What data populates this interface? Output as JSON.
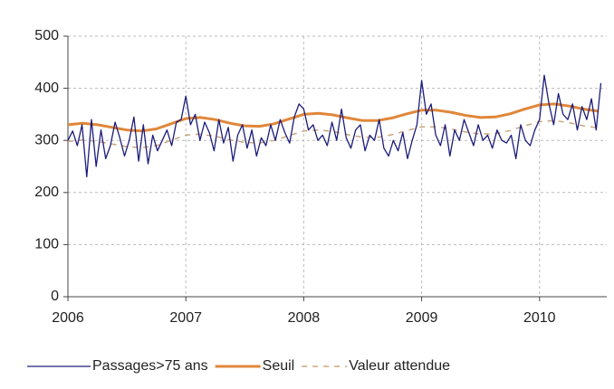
{
  "chart_data": {
    "type": "line",
    "xlim": [
      2006,
      2010.57
    ],
    "xticks": [
      2006,
      2007,
      2008,
      2009,
      2010
    ],
    "ylim": [
      0,
      500
    ],
    "yticks": [
      0,
      100,
      200,
      300,
      400,
      500
    ],
    "grid": true,
    "legend": "bottom",
    "series": [
      {
        "name": "Passages>75 ans",
        "color": "#1c1c7c",
        "x": [
          2006.0,
          2006.04,
          2006.08,
          2006.12,
          2006.16,
          2006.2,
          2006.24,
          2006.28,
          2006.32,
          2006.36,
          2006.4,
          2006.44,
          2006.48,
          2006.52,
          2006.56,
          2006.6,
          2006.64,
          2006.68,
          2006.72,
          2006.76,
          2006.8,
          2006.84,
          2006.88,
          2006.92,
          2006.96,
          2007.0,
          2007.04,
          2007.08,
          2007.12,
          2007.16,
          2007.2,
          2007.24,
          2007.28,
          2007.32,
          2007.36,
          2007.4,
          2007.44,
          2007.48,
          2007.52,
          2007.56,
          2007.6,
          2007.64,
          2007.68,
          2007.72,
          2007.76,
          2007.8,
          2007.84,
          2007.88,
          2007.92,
          2007.96,
          2008.0,
          2008.04,
          2008.08,
          2008.12,
          2008.16,
          2008.2,
          2008.24,
          2008.28,
          2008.32,
          2008.36,
          2008.4,
          2008.44,
          2008.48,
          2008.52,
          2008.56,
          2008.6,
          2008.64,
          2008.68,
          2008.72,
          2008.76,
          2008.8,
          2008.84,
          2008.88,
          2008.92,
          2008.96,
          2009.0,
          2009.04,
          2009.08,
          2009.12,
          2009.16,
          2009.2,
          2009.24,
          2009.28,
          2009.32,
          2009.36,
          2009.4,
          2009.44,
          2009.48,
          2009.52,
          2009.56,
          2009.6,
          2009.64,
          2009.68,
          2009.72,
          2009.76,
          2009.8,
          2009.84,
          2009.88,
          2009.92,
          2009.96,
          2010.0,
          2010.04,
          2010.08,
          2010.12,
          2010.16,
          2010.2,
          2010.24,
          2010.28,
          2010.32,
          2010.36,
          2010.4,
          2010.44,
          2010.48,
          2010.52
        ],
        "values": [
          300,
          318,
          290,
          330,
          230,
          340,
          250,
          320,
          265,
          290,
          335,
          305,
          270,
          300,
          345,
          260,
          330,
          255,
          310,
          280,
          300,
          320,
          290,
          335,
          340,
          385,
          330,
          350,
          300,
          335,
          315,
          280,
          340,
          295,
          325,
          260,
          310,
          330,
          285,
          320,
          270,
          305,
          290,
          330,
          300,
          340,
          315,
          295,
          345,
          370,
          360,
          320,
          330,
          300,
          310,
          290,
          335,
          300,
          360,
          305,
          285,
          320,
          330,
          280,
          310,
          300,
          340,
          285,
          270,
          300,
          280,
          315,
          265,
          300,
          330,
          415,
          350,
          370,
          310,
          290,
          330,
          270,
          320,
          300,
          340,
          315,
          290,
          330,
          300,
          310,
          285,
          320,
          300,
          295,
          310,
          265,
          330,
          300,
          290,
          320,
          340,
          425,
          370,
          330,
          390,
          350,
          340,
          370,
          320,
          365,
          340,
          380,
          320,
          410
        ]
      },
      {
        "name": "Seuil",
        "color": "#e0873a",
        "x": [
          2006.0,
          2006.125,
          2006.25,
          2006.375,
          2006.5,
          2006.625,
          2006.75,
          2006.875,
          2007.0,
          2007.125,
          2007.25,
          2007.375,
          2007.5,
          2007.625,
          2007.75,
          2007.875,
          2008.0,
          2008.125,
          2008.25,
          2008.375,
          2008.5,
          2008.625,
          2008.75,
          2008.875,
          2009.0,
          2009.125,
          2009.25,
          2009.375,
          2009.5,
          2009.625,
          2009.75,
          2009.875,
          2010.0,
          2010.125,
          2010.25,
          2010.375,
          2010.5
        ],
        "values": [
          330,
          333,
          330,
          325,
          320,
          318,
          322,
          332,
          342,
          344,
          340,
          333,
          328,
          327,
          332,
          341,
          350,
          352,
          349,
          343,
          338,
          338,
          343,
          351,
          358,
          358,
          354,
          348,
          344,
          345,
          351,
          360,
          368,
          370,
          366,
          360,
          356
        ]
      },
      {
        "name": "Valeur attendue",
        "color": "#c9a57e",
        "dashed": true,
        "x": [
          2006.0,
          2006.125,
          2006.25,
          2006.375,
          2006.5,
          2006.625,
          2006.75,
          2006.875,
          2007.0,
          2007.125,
          2007.25,
          2007.375,
          2007.5,
          2007.625,
          2007.75,
          2007.875,
          2008.0,
          2008.125,
          2008.25,
          2008.375,
          2008.5,
          2008.625,
          2008.75,
          2008.875,
          2009.0,
          2009.125,
          2009.25,
          2009.375,
          2009.5,
          2009.625,
          2009.75,
          2009.875,
          2010.0,
          2010.125,
          2010.25,
          2010.375,
          2010.5
        ],
        "values": [
          298,
          301,
          298,
          293,
          288,
          286,
          290,
          300,
          310,
          312,
          308,
          301,
          296,
          295,
          300,
          309,
          318,
          320,
          317,
          311,
          306,
          306,
          311,
          319,
          326,
          326,
          322,
          316,
          312,
          313,
          319,
          328,
          336,
          338,
          334,
          328,
          324
        ]
      }
    ]
  }
}
